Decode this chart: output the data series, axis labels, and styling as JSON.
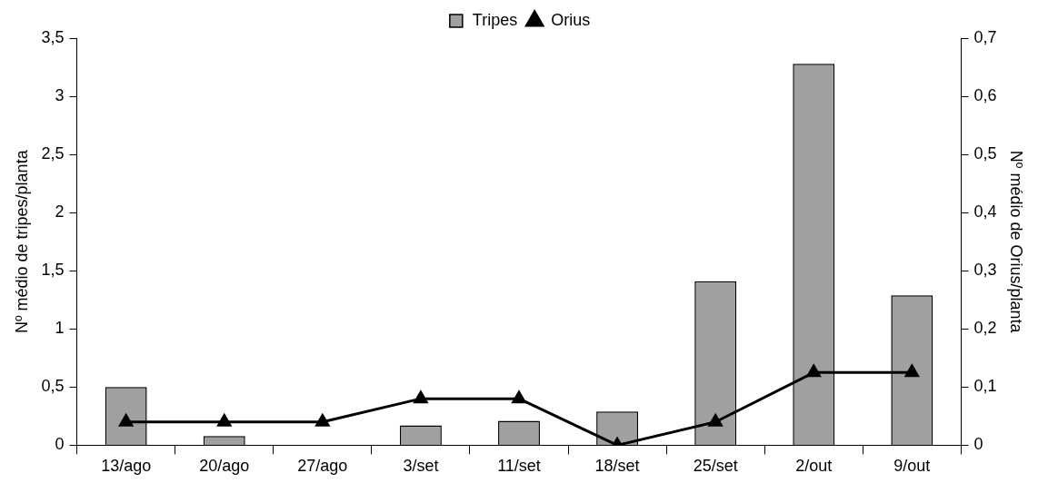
{
  "chart_data": {
    "type": "bar",
    "categories": [
      "13/ago",
      "20/ago",
      "27/ago",
      "3/set",
      "11/set",
      "18/set",
      "25/set",
      "2/out",
      "9/out"
    ],
    "ylabel": "Nº médio de tripes/planta",
    "y2label": "Nº médio de Orius/planta",
    "ylim": [
      0,
      3.5
    ],
    "yticks": [
      0,
      {
        "value": 0.5,
        "label": "0,5"
      },
      1,
      {
        "value": 1.5,
        "label": "1,5"
      },
      2,
      {
        "value": 2.5,
        "label": "2,5"
      },
      3,
      {
        "value": 3.5,
        "label": "3,5"
      }
    ],
    "y2lim": [
      0,
      0.7
    ],
    "y2ticks": [
      0,
      {
        "value": 0.1,
        "label": "0,1"
      },
      {
        "value": 0.2,
        "label": "0,2"
      },
      {
        "value": 0.3,
        "label": "0,3"
      },
      {
        "value": 0.4,
        "label": "0,4"
      },
      {
        "value": 0.5,
        "label": "0,5"
      },
      {
        "value": 0.6,
        "label": "0,6"
      },
      {
        "value": 0.7,
        "label": "0,7"
      }
    ],
    "legend": "top",
    "grid": false,
    "series": [
      {
        "name": "Tripes",
        "color": "#a0a0a0",
        "values": [
          0.5,
          0.08,
          0,
          0.17,
          0.21,
          0.29,
          1.41,
          3.28,
          1.29
        ]
      },
      {
        "name": "Orius",
        "type": "line",
        "axis": "y2",
        "color": "#000000",
        "marker": "triangle",
        "line_style": "solid",
        "values": [
          0.04,
          0.04,
          0.04,
          0.08,
          0.08,
          0,
          0.04,
          0.125,
          0.125
        ]
      }
    ]
  }
}
